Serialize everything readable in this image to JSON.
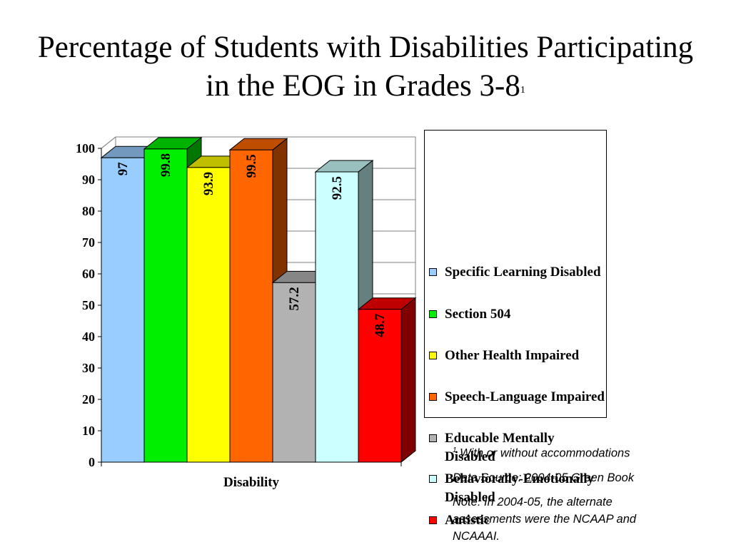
{
  "title": {
    "line1": "Percentage of Students with Disabilities Participating",
    "line2": "in the EOG in Grades 3-8",
    "superscript": "1"
  },
  "chart_data": {
    "type": "bar",
    "categories": [
      "Specific Learning Disabled",
      "Section 504",
      "Other Health Impaired",
      "Speech-Language Impaired",
      "Educable Mentally Disabled",
      "Behaviorally-Emotionally Disabled",
      "Autistic"
    ],
    "values": [
      97,
      99.8,
      93.9,
      99.5,
      57.2,
      92.5,
      48.7
    ],
    "data_labels": [
      "97",
      "99.8",
      "93.9",
      "99.5",
      "57.2",
      "92.5",
      "48.7"
    ],
    "colors": [
      "#99ccff",
      "#00ee00",
      "#ffff00",
      "#ff6600",
      "#b2b2b2",
      "#ccffff",
      "#ff0000"
    ],
    "xlabel": "Disability",
    "ylabel": "",
    "ylim": [
      0,
      100
    ],
    "yticks": [
      0,
      10,
      20,
      30,
      40,
      50,
      60,
      70,
      80,
      90,
      100
    ],
    "ytick_labels": [
      "0",
      "10",
      "20",
      "30",
      "40",
      "50",
      "60",
      "70",
      "80",
      "90",
      "100"
    ],
    "grid": true,
    "three_d": true,
    "legend_position": "right"
  },
  "legend": {
    "items": [
      {
        "label": "Specific Learning Disabled",
        "color": "#99ccff"
      },
      {
        "label": "Section 504",
        "color": "#00ee00"
      },
      {
        "label": "Other Health Impaired",
        "color": "#ffff00"
      },
      {
        "label": "Speech-Language Impaired",
        "color": "#ff6600"
      },
      {
        "label": "Educable Mentally Disabled",
        "color": "#b2b2b2"
      },
      {
        "label": "Behaviorally-Emotionally Disabled",
        "color": "#ccffff"
      },
      {
        "label": "Autistic",
        "color": "#ff0000"
      }
    ]
  },
  "notes": {
    "footnote_marker": "1",
    "footnote": "With or without accommodations",
    "source": "Data Source: 2004-05 Green Book",
    "note": "Note: In 2004-05, the alternate assessments were the NCAAP and NCAAAI."
  }
}
